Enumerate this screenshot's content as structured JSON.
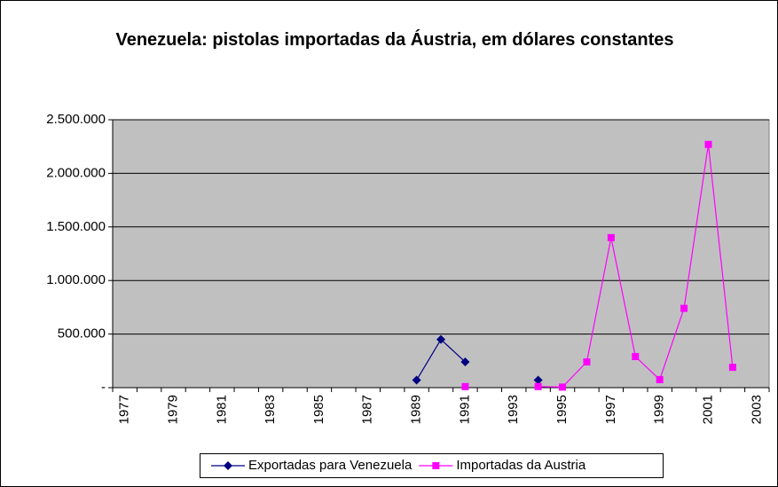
{
  "chart_data": {
    "type": "line",
    "title": "Venezuela: pistolas importadas da Áustria, em dólares constantes",
    "categories": [
      "1977",
      null,
      "1979",
      null,
      "1981",
      null,
      "1983",
      null,
      "1985",
      null,
      "1987",
      null,
      "1989",
      null,
      "1991",
      null,
      "1993",
      null,
      "1995",
      null,
      "1997",
      null,
      "1999",
      null,
      "2001",
      null,
      "2003"
    ],
    "series": [
      {
        "name": "Exportadas para Venezuela",
        "color": "#000080",
        "marker": "diamond",
        "values": [
          null,
          null,
          null,
          null,
          null,
          null,
          null,
          null,
          null,
          null,
          null,
          null,
          70000,
          450000,
          240000,
          null,
          null,
          70000,
          null,
          null,
          null,
          null,
          null,
          null,
          null,
          null,
          null
        ]
      },
      {
        "name": "Importadas da Austria",
        "color": "#ff00ff",
        "marker": "square",
        "values": [
          null,
          null,
          null,
          null,
          null,
          null,
          null,
          null,
          null,
          null,
          null,
          null,
          null,
          null,
          10000,
          null,
          null,
          10000,
          5000,
          240000,
          1400000,
          290000,
          75000,
          740000,
          2270000,
          190000,
          null
        ]
      }
    ],
    "ylim": [
      0,
      2500000
    ],
    "yticks": [
      {
        "value": 0,
        "label": "-"
      },
      {
        "value": 500000,
        "label": "500.000"
      },
      {
        "value": 1000000,
        "label": "1.000.000"
      },
      {
        "value": 1500000,
        "label": "1.500.000"
      },
      {
        "value": 2000000,
        "label": "2.000.000"
      },
      {
        "value": 2500000,
        "label": "2.500.000"
      }
    ],
    "grid": true,
    "plot_background": "#c0c0c0",
    "legend": "bottom"
  }
}
